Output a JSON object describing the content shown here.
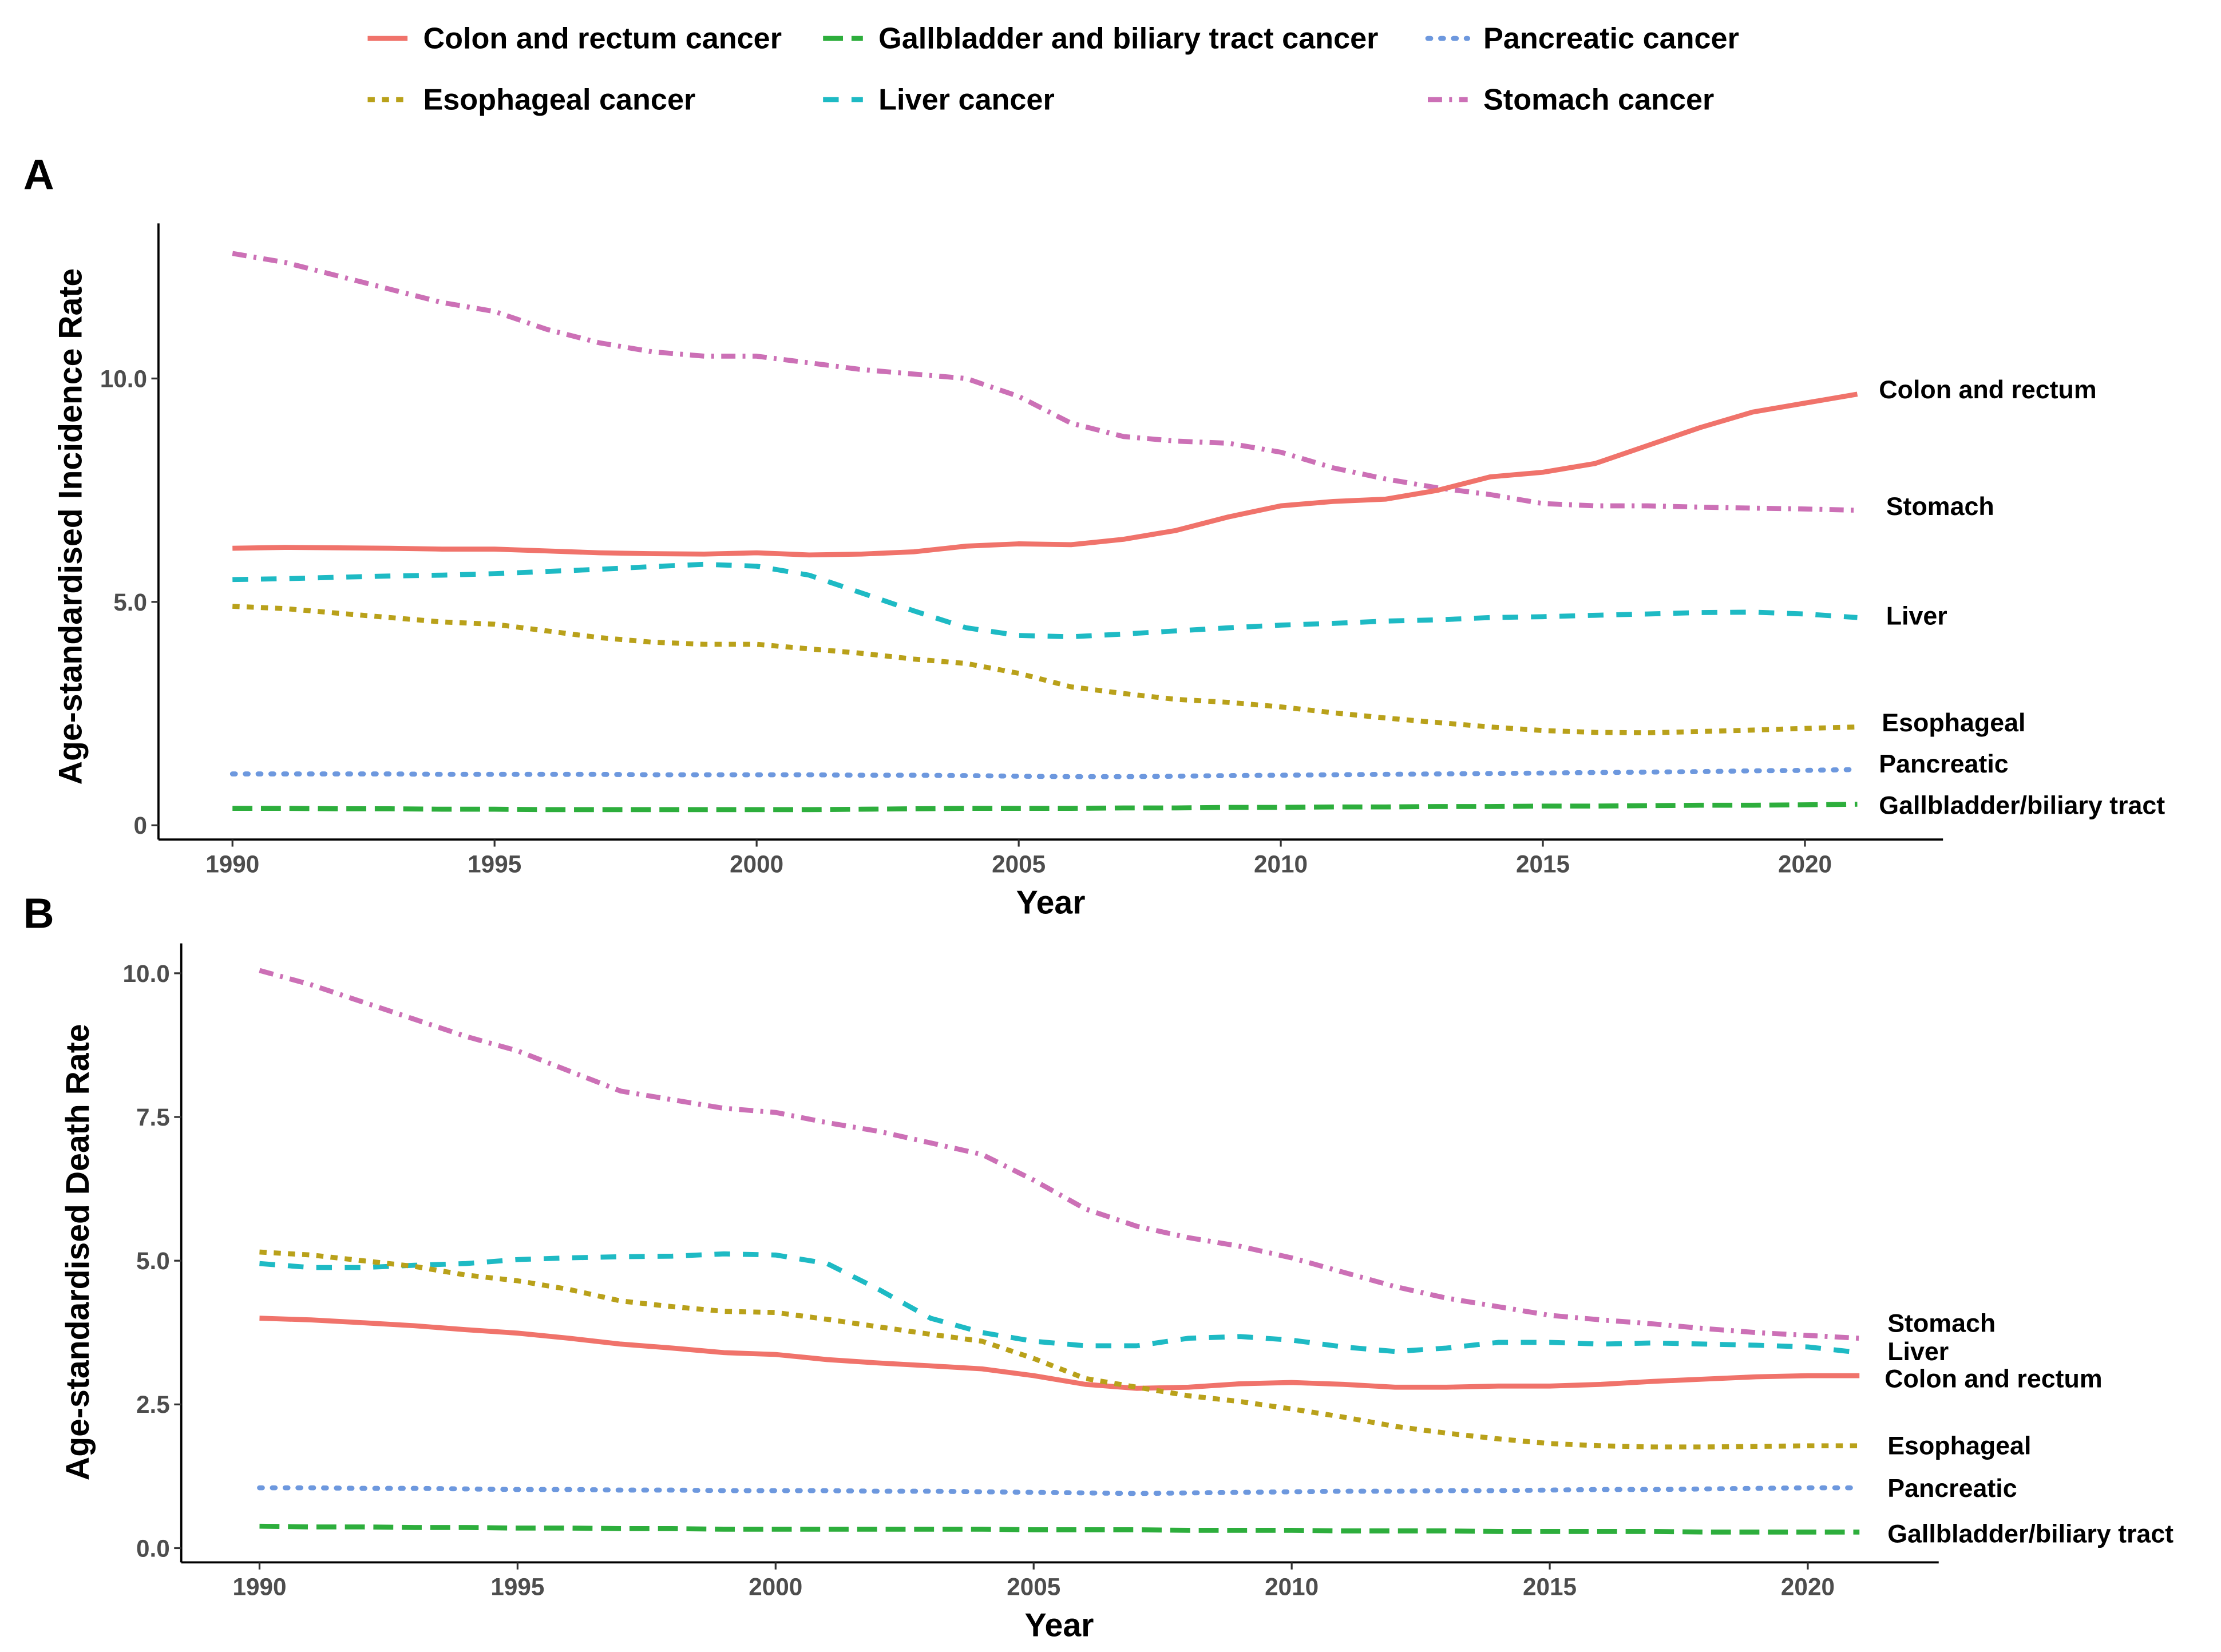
{
  "legend": [
    {
      "key": "colon",
      "label": "Colon and rectum cancer"
    },
    {
      "key": "gallbladder",
      "label": "Gallbladder and biliary tract cancer"
    },
    {
      "key": "pancreatic",
      "label": "Pancreatic cancer"
    },
    {
      "key": "esophageal",
      "label": "Esophageal cancer"
    },
    {
      "key": "liver",
      "label": "Liver cancer"
    },
    {
      "key": "stomach",
      "label": "Stomach cancer"
    }
  ],
  "colors": {
    "colon": "#F0736B",
    "esophageal": "#B9A11A",
    "gallbladder": "#2DAE3C",
    "liver": "#1EBAC4",
    "pancreatic": "#6D98DE",
    "stomach": "#CC70B6"
  },
  "chart_data": [
    {
      "panel": "A",
      "type": "line",
      "xlabel": "Year",
      "ylabel": "Age-standardised Incidence Rate",
      "xlim": [
        1990,
        2021
      ],
      "ylim": [
        0,
        13
      ],
      "xticks": [
        1990,
        1995,
        2000,
        2005,
        2010,
        2015,
        2020
      ],
      "yticks": [
        {
          "v": 0,
          "label": "0"
        },
        {
          "v": 5,
          "label": "5.0"
        },
        {
          "v": 10,
          "label": "10.0"
        }
      ],
      "x_start": 1990,
      "series": [
        {
          "key": "stomach",
          "end_label": "Stomach",
          "values": [
            12.8,
            12.6,
            12.3,
            12.0,
            11.7,
            11.5,
            11.1,
            10.8,
            10.6,
            10.5,
            10.5,
            10.35,
            10.2,
            10.1,
            10.0,
            9.6,
            9.0,
            8.7,
            8.6,
            8.55,
            8.35,
            8.0,
            7.75,
            7.55,
            7.4,
            7.2,
            7.15,
            7.15,
            7.12,
            7.1,
            7.08,
            7.05
          ]
        },
        {
          "key": "colon",
          "end_label": "Colon and rectum",
          "values": [
            6.2,
            6.22,
            6.21,
            6.2,
            6.18,
            6.18,
            6.14,
            6.1,
            6.08,
            6.07,
            6.1,
            6.05,
            6.07,
            6.12,
            6.25,
            6.3,
            6.28,
            6.4,
            6.6,
            6.9,
            7.15,
            7.25,
            7.3,
            7.5,
            7.8,
            7.9,
            8.1,
            8.5,
            8.9,
            9.25,
            9.45,
            9.65
          ]
        },
        {
          "key": "liver",
          "end_label": "Liver",
          "values": [
            5.5,
            5.52,
            5.55,
            5.58,
            5.6,
            5.63,
            5.68,
            5.73,
            5.79,
            5.84,
            5.8,
            5.6,
            5.2,
            4.8,
            4.42,
            4.25,
            4.22,
            4.28,
            4.35,
            4.42,
            4.48,
            4.52,
            4.57,
            4.6,
            4.65,
            4.67,
            4.7,
            4.73,
            4.76,
            4.77,
            4.73,
            4.65
          ]
        },
        {
          "key": "esophageal",
          "end_label": "Esophageal",
          "values": [
            4.9,
            4.85,
            4.75,
            4.65,
            4.55,
            4.5,
            4.35,
            4.2,
            4.1,
            4.05,
            4.05,
            3.95,
            3.85,
            3.72,
            3.62,
            3.4,
            3.1,
            2.95,
            2.82,
            2.75,
            2.65,
            2.52,
            2.4,
            2.3,
            2.2,
            2.12,
            2.08,
            2.07,
            2.1,
            2.13,
            2.17,
            2.2
          ]
        },
        {
          "key": "pancreatic",
          "end_label": "Pancreatic",
          "values": [
            1.15,
            1.15,
            1.15,
            1.15,
            1.14,
            1.14,
            1.14,
            1.14,
            1.13,
            1.13,
            1.13,
            1.13,
            1.12,
            1.12,
            1.11,
            1.1,
            1.09,
            1.09,
            1.1,
            1.11,
            1.12,
            1.13,
            1.14,
            1.15,
            1.16,
            1.17,
            1.18,
            1.19,
            1.2,
            1.22,
            1.23,
            1.25
          ]
        },
        {
          "key": "gallbladder",
          "end_label": "Gallbladder/biliary tract",
          "values": [
            0.38,
            0.38,
            0.37,
            0.37,
            0.36,
            0.36,
            0.35,
            0.35,
            0.35,
            0.35,
            0.35,
            0.35,
            0.36,
            0.37,
            0.38,
            0.38,
            0.38,
            0.39,
            0.39,
            0.4,
            0.4,
            0.41,
            0.41,
            0.42,
            0.42,
            0.43,
            0.43,
            0.44,
            0.45,
            0.45,
            0.46,
            0.47
          ]
        }
      ]
    },
    {
      "panel": "B",
      "type": "line",
      "xlabel": "Year",
      "ylabel": "Age-standardised Death Rate",
      "xlim": [
        1990,
        2021
      ],
      "ylim": [
        0,
        10.2
      ],
      "xticks": [
        1990,
        1995,
        2000,
        2005,
        2010,
        2015,
        2020
      ],
      "yticks": [
        {
          "v": 0,
          "label": "0.0"
        },
        {
          "v": 2.5,
          "label": "2.5"
        },
        {
          "v": 5,
          "label": "5.0"
        },
        {
          "v": 7.5,
          "label": "7.5"
        },
        {
          "v": 10,
          "label": "10.0"
        }
      ],
      "x_start": 1990,
      "series": [
        {
          "key": "stomach",
          "end_label": "Stomach",
          "values": [
            10.05,
            9.8,
            9.5,
            9.2,
            8.9,
            8.65,
            8.3,
            7.95,
            7.8,
            7.65,
            7.58,
            7.4,
            7.25,
            7.05,
            6.85,
            6.4,
            5.9,
            5.6,
            5.4,
            5.25,
            5.05,
            4.8,
            4.55,
            4.35,
            4.2,
            4.05,
            3.97,
            3.9,
            3.82,
            3.75,
            3.7,
            3.65
          ]
        },
        {
          "key": "liver",
          "end_label": "Liver",
          "values": [
            4.95,
            4.88,
            4.88,
            4.92,
            4.95,
            5.02,
            5.05,
            5.07,
            5.08,
            5.12,
            5.1,
            4.95,
            4.5,
            4.0,
            3.75,
            3.6,
            3.52,
            3.52,
            3.65,
            3.68,
            3.62,
            3.5,
            3.42,
            3.48,
            3.58,
            3.58,
            3.55,
            3.57,
            3.55,
            3.53,
            3.5,
            3.4
          ]
        },
        {
          "key": "colon",
          "end_label": "Colon and rectum",
          "values": [
            4.0,
            3.97,
            3.92,
            3.87,
            3.8,
            3.74,
            3.65,
            3.55,
            3.48,
            3.4,
            3.37,
            3.28,
            3.22,
            3.17,
            3.12,
            3.0,
            2.85,
            2.78,
            2.8,
            2.86,
            2.88,
            2.85,
            2.8,
            2.8,
            2.82,
            2.82,
            2.85,
            2.9,
            2.94,
            2.98,
            3.0,
            3.0
          ]
        },
        {
          "key": "esophageal",
          "end_label": "Esophageal",
          "values": [
            5.15,
            5.1,
            5.0,
            4.9,
            4.75,
            4.65,
            4.5,
            4.3,
            4.2,
            4.12,
            4.1,
            3.98,
            3.85,
            3.72,
            3.6,
            3.3,
            2.95,
            2.8,
            2.65,
            2.55,
            2.42,
            2.28,
            2.12,
            2.0,
            1.9,
            1.82,
            1.78,
            1.76,
            1.76,
            1.77,
            1.78,
            1.78
          ]
        },
        {
          "key": "pancreatic",
          "end_label": "Pancreatic",
          "values": [
            1.05,
            1.05,
            1.04,
            1.04,
            1.03,
            1.02,
            1.02,
            1.01,
            1.01,
            1.0,
            1.0,
            1.0,
            0.99,
            0.99,
            0.98,
            0.97,
            0.96,
            0.95,
            0.96,
            0.97,
            0.98,
            0.99,
            0.99,
            1.0,
            1.0,
            1.01,
            1.02,
            1.02,
            1.03,
            1.04,
            1.05,
            1.05
          ]
        },
        {
          "key": "gallbladder",
          "end_label": "Gallbladder/biliary tract",
          "values": [
            0.38,
            0.37,
            0.37,
            0.36,
            0.36,
            0.35,
            0.35,
            0.34,
            0.34,
            0.33,
            0.33,
            0.33,
            0.33,
            0.33,
            0.33,
            0.32,
            0.32,
            0.32,
            0.31,
            0.31,
            0.31,
            0.3,
            0.3,
            0.3,
            0.29,
            0.29,
            0.29,
            0.29,
            0.28,
            0.28,
            0.28,
            0.28
          ]
        }
      ]
    }
  ]
}
